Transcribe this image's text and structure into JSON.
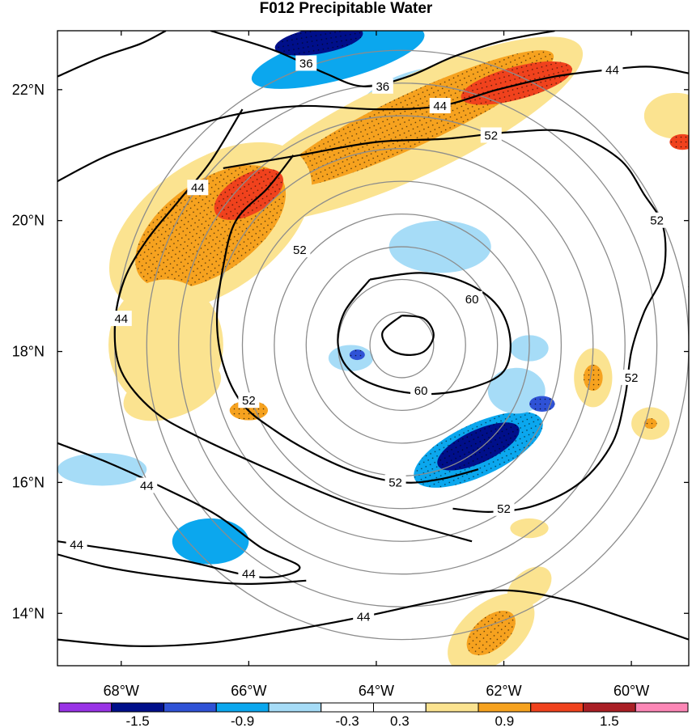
{
  "chart_data": {
    "type": "heatmap",
    "title": "F012 Precipitable Water",
    "xlabel": "",
    "ylabel": "",
    "xlim": [
      -69.0,
      -59.1
    ],
    "ylim": [
      13.2,
      22.9
    ],
    "x_ticks": [
      {
        "value": -68,
        "label": "68°W"
      },
      {
        "value": -66,
        "label": "66°W"
      },
      {
        "value": -64,
        "label": "64°W"
      },
      {
        "value": -62,
        "label": "62°W"
      },
      {
        "value": -60,
        "label": "60°W"
      }
    ],
    "y_ticks": [
      {
        "value": 14,
        "label": "14°N"
      },
      {
        "value": 16,
        "label": "16°N"
      },
      {
        "value": 18,
        "label": "18°N"
      },
      {
        "value": 20,
        "label": "20°N"
      },
      {
        "value": 22,
        "label": "22°N"
      }
    ],
    "center": {
      "lon": -63.6,
      "lat": 18.1
    },
    "range_rings_deg": [
      0.5,
      1.0,
      1.5,
      2.0,
      2.5,
      3.0,
      3.5,
      4.0,
      4.5
    ],
    "colorbar": {
      "levels": [
        -1.8,
        -1.5,
        -1.2,
        -0.9,
        -0.6,
        -0.3,
        0.3,
        0.6,
        0.9,
        1.2,
        1.5,
        1.8
      ],
      "colors": [
        "#9933e6",
        "#000f8a",
        "#2f52d6",
        "#0ba7ee",
        "#a6dcf7",
        "#ffffff",
        "#ffffff",
        "#fbe390",
        "#f6a21f",
        "#f0421d",
        "#aa1f25",
        "#fc87b6"
      ],
      "tick_labels": [
        "-1.5",
        "-0.9",
        "-0.3",
        "0.3",
        "0.9",
        "1.5"
      ],
      "tick_values": [
        -1.5,
        -0.9,
        -0.3,
        0.3,
        0.9,
        1.5
      ]
    },
    "contour_levels": [
      36,
      44,
      52,
      60
    ],
    "contour_labels": [
      {
        "text": "36",
        "lon": -65.1,
        "lat": 22.4
      },
      {
        "text": "36",
        "lon": -63.9,
        "lat": 22.05
      },
      {
        "text": "44",
        "lon": -63.0,
        "lat": 21.75
      },
      {
        "text": "44",
        "lon": -60.3,
        "lat": 22.3
      },
      {
        "text": "44",
        "lon": -66.8,
        "lat": 20.5
      },
      {
        "text": "44",
        "lon": -68.0,
        "lat": 18.5
      },
      {
        "text": "44",
        "lon": -67.6,
        "lat": 15.95
      },
      {
        "text": "44",
        "lon": -68.7,
        "lat": 15.05
      },
      {
        "text": "44",
        "lon": -66.0,
        "lat": 14.6
      },
      {
        "text": "44",
        "lon": -64.2,
        "lat": 13.95
      },
      {
        "text": "52",
        "lon": -62.2,
        "lat": 21.3
      },
      {
        "text": "52",
        "lon": -59.6,
        "lat": 20.0
      },
      {
        "text": "52",
        "lon": -65.2,
        "lat": 19.55
      },
      {
        "text": "52",
        "lon": -66.0,
        "lat": 17.25
      },
      {
        "text": "52",
        "lon": -60.0,
        "lat": 17.6
      },
      {
        "text": "52",
        "lon": -63.7,
        "lat": 16.0
      },
      {
        "text": "52",
        "lon": -62.0,
        "lat": 15.6
      },
      {
        "text": "60",
        "lon": -62.5,
        "lat": 18.8
      },
      {
        "text": "60",
        "lon": -63.3,
        "lat": 17.4
      }
    ],
    "contours": [
      {
        "level": 36,
        "points": [
          [
            -66.6,
            22.9
          ],
          [
            -65.6,
            22.6
          ],
          [
            -64.8,
            22.25
          ],
          [
            -64.2,
            22.05
          ],
          [
            -63.5,
            22.2
          ],
          [
            -62.8,
            22.5
          ],
          [
            -62.0,
            22.75
          ],
          [
            -61.2,
            22.9
          ]
        ]
      },
      {
        "level": 36,
        "points": [
          [
            -69.0,
            22.2
          ],
          [
            -68.3,
            22.5
          ],
          [
            -67.7,
            22.7
          ],
          [
            -67.3,
            22.9
          ]
        ]
      },
      {
        "level": 44,
        "points": [
          [
            -69.0,
            20.6
          ],
          [
            -68.2,
            21.0
          ],
          [
            -67.3,
            21.3
          ],
          [
            -66.3,
            21.6
          ],
          [
            -65.2,
            21.75
          ],
          [
            -64.0,
            21.7
          ],
          [
            -63.0,
            21.75
          ],
          [
            -62.1,
            22.0
          ],
          [
            -61.2,
            22.2
          ],
          [
            -60.4,
            22.3
          ],
          [
            -59.7,
            22.35
          ],
          [
            -59.1,
            22.25
          ]
        ]
      },
      {
        "level": 44,
        "points": [
          [
            -66.1,
            21.7
          ],
          [
            -66.6,
            20.9
          ],
          [
            -67.1,
            20.3
          ],
          [
            -67.6,
            19.7
          ],
          [
            -67.95,
            19.1
          ],
          [
            -68.1,
            18.4
          ],
          [
            -68.0,
            17.7
          ],
          [
            -67.5,
            17.1
          ],
          [
            -66.8,
            16.7
          ],
          [
            -65.8,
            16.25
          ],
          [
            -64.6,
            15.75
          ],
          [
            -63.4,
            15.35
          ],
          [
            -62.5,
            15.1
          ]
        ]
      },
      {
        "level": 44,
        "points": [
          [
            -69.0,
            16.6
          ],
          [
            -68.2,
            16.3
          ],
          [
            -67.3,
            15.9
          ],
          [
            -66.5,
            15.5
          ],
          [
            -65.8,
            15.0
          ],
          [
            -65.2,
            14.7
          ],
          [
            -65.8,
            14.55
          ],
          [
            -67.0,
            14.8
          ],
          [
            -68.3,
            15.0
          ],
          [
            -69.0,
            15.1
          ]
        ]
      },
      {
        "level": 44,
        "points": [
          [
            -69.0,
            14.9
          ],
          [
            -68.2,
            14.7
          ],
          [
            -67.2,
            14.55
          ],
          [
            -66.1,
            14.45
          ],
          [
            -65.1,
            14.5
          ]
        ]
      },
      {
        "level": 44,
        "points": [
          [
            -69.0,
            13.6
          ],
          [
            -67.8,
            13.5
          ],
          [
            -66.6,
            13.55
          ],
          [
            -65.3,
            13.75
          ],
          [
            -64.2,
            13.95
          ],
          [
            -63.0,
            14.2
          ],
          [
            -62.0,
            14.35
          ],
          [
            -61.0,
            14.2
          ],
          [
            -60.0,
            13.9
          ],
          [
            -59.1,
            13.6
          ]
        ]
      },
      {
        "level": 52,
        "points": [
          [
            -66.4,
            20.8
          ],
          [
            -65.2,
            21.0
          ],
          [
            -64.0,
            21.2
          ],
          [
            -62.9,
            21.25
          ],
          [
            -61.9,
            21.35
          ],
          [
            -61.0,
            21.35
          ],
          [
            -60.2,
            20.95
          ],
          [
            -59.8,
            20.4
          ],
          [
            -59.5,
            19.9
          ],
          [
            -59.5,
            19.2
          ],
          [
            -59.8,
            18.6
          ],
          [
            -60.0,
            18.0
          ],
          [
            -60.1,
            17.3
          ],
          [
            -60.3,
            16.6
          ],
          [
            -60.8,
            16.0
          ],
          [
            -61.5,
            15.65
          ],
          [
            -62.2,
            15.55
          ],
          [
            -62.8,
            15.6
          ]
        ]
      },
      {
        "level": 52,
        "points": [
          [
            -65.3,
            21.0
          ],
          [
            -65.7,
            20.5
          ],
          [
            -66.2,
            20.0
          ],
          [
            -66.4,
            19.3
          ],
          [
            -66.5,
            18.5
          ],
          [
            -66.4,
            17.8
          ],
          [
            -66.1,
            17.2
          ],
          [
            -65.6,
            16.8
          ],
          [
            -65.0,
            16.45
          ],
          [
            -64.3,
            16.15
          ],
          [
            -63.6,
            16.0
          ],
          [
            -63.0,
            16.05
          ],
          [
            -62.4,
            16.2
          ]
        ]
      },
      {
        "level": 52,
        "points": [
          [
            -59.1,
            19.0
          ],
          [
            -58.8,
            18.6
          ]
        ]
      },
      {
        "level": 60,
        "points": [
          [
            -64.1,
            19.1
          ],
          [
            -63.3,
            19.2
          ],
          [
            -62.6,
            19.05
          ],
          [
            -62.1,
            18.7
          ],
          [
            -61.9,
            18.2
          ],
          [
            -62.0,
            17.7
          ],
          [
            -62.5,
            17.45
          ],
          [
            -63.2,
            17.35
          ],
          [
            -63.9,
            17.45
          ],
          [
            -64.4,
            17.7
          ],
          [
            -64.6,
            18.1
          ],
          [
            -64.5,
            18.6
          ],
          [
            -64.1,
            19.1
          ]
        ]
      },
      {
        "level": 60,
        "points": [
          [
            -63.6,
            18.55
          ],
          [
            -63.25,
            18.5
          ],
          [
            -63.1,
            18.25
          ],
          [
            -63.25,
            18.0
          ],
          [
            -63.55,
            17.95
          ],
          [
            -63.8,
            18.05
          ],
          [
            -63.9,
            18.3
          ],
          [
            -63.6,
            18.55
          ]
        ]
      }
    ],
    "anomaly_blobs": [
      {
        "lon": -64.6,
        "lat": 22.5,
        "rx": 1.4,
        "ry": 0.35,
        "rot": -15,
        "value": -0.7
      },
      {
        "lon": -64.9,
        "lat": 22.75,
        "rx": 0.7,
        "ry": 0.2,
        "rot": -10,
        "value": -1.3
      },
      {
        "lon": -63.5,
        "lat": 21.95,
        "rx": 0.8,
        "ry": 0.3,
        "rot": -20,
        "value": -0.4
      },
      {
        "lon": -63.5,
        "lat": 21.4,
        "rx": 3.0,
        "ry": 0.75,
        "rot": -25,
        "value": 0.65
      },
      {
        "lon": -63.4,
        "lat": 21.55,
        "rx": 2.4,
        "ry": 0.4,
        "rot": -25,
        "value": 1.0
      },
      {
        "lon": -61.8,
        "lat": 22.1,
        "rx": 0.9,
        "ry": 0.25,
        "rot": -15,
        "value": 1.25
      },
      {
        "lon": -66.6,
        "lat": 19.9,
        "rx": 1.8,
        "ry": 1.0,
        "rot": -35,
        "value": 0.7
      },
      {
        "lon": -66.6,
        "lat": 19.9,
        "rx": 1.35,
        "ry": 0.7,
        "rot": -35,
        "value": 1.0
      },
      {
        "lon": -66.0,
        "lat": 20.4,
        "rx": 0.6,
        "ry": 0.3,
        "rot": -30,
        "value": 1.25
      },
      {
        "lon": -67.3,
        "lat": 18.1,
        "rx": 0.9,
        "ry": 1.0,
        "rot": 0,
        "value": 0.6
      },
      {
        "lon": -67.2,
        "lat": 17.4,
        "rx": 0.8,
        "ry": 0.4,
        "rot": -20,
        "value": 0.75
      },
      {
        "lon": -66.0,
        "lat": 17.1,
        "rx": 0.3,
        "ry": 0.15,
        "rot": 0,
        "value": 1.0
      },
      {
        "lon": -62.4,
        "lat": 16.5,
        "rx": 1.1,
        "ry": 0.4,
        "rot": -25,
        "value": -0.9
      },
      {
        "lon": -62.4,
        "lat": 16.55,
        "rx": 0.7,
        "ry": 0.25,
        "rot": -25,
        "value": -1.35
      },
      {
        "lon": -61.8,
        "lat": 17.4,
        "rx": 0.45,
        "ry": 0.35,
        "rot": 0,
        "value": -0.6
      },
      {
        "lon": -61.4,
        "lat": 17.2,
        "rx": 0.2,
        "ry": 0.12,
        "rot": 0,
        "value": -1.2
      },
      {
        "lon": -61.6,
        "lat": 18.05,
        "rx": 0.3,
        "ry": 0.2,
        "rot": 0,
        "value": -0.6
      },
      {
        "lon": -64.4,
        "lat": 17.9,
        "rx": 0.35,
        "ry": 0.2,
        "rot": 0,
        "value": -0.6
      },
      {
        "lon": -64.3,
        "lat": 17.95,
        "rx": 0.12,
        "ry": 0.08,
        "rot": 0,
        "value": -1.2
      },
      {
        "lon": -63.0,
        "lat": 19.6,
        "rx": 0.8,
        "ry": 0.4,
        "rot": 0,
        "value": -0.35
      },
      {
        "lon": -63.6,
        "lat": 17.6,
        "rx": 0.4,
        "ry": 0.2,
        "rot": 0,
        "value": 0.45
      },
      {
        "lon": -62.6,
        "lat": 17.9,
        "rx": 0.25,
        "ry": 0.15,
        "rot": 0,
        "value": 0.5
      },
      {
        "lon": -60.6,
        "lat": 17.6,
        "rx": 0.3,
        "ry": 0.45,
        "rot": 0,
        "value": 0.7
      },
      {
        "lon": -60.6,
        "lat": 17.6,
        "rx": 0.15,
        "ry": 0.2,
        "rot": 0,
        "value": 1.0
      },
      {
        "lon": -59.4,
        "lat": 19.6,
        "rx": 0.6,
        "ry": 0.4,
        "rot": -30,
        "value": 0.5
      },
      {
        "lon": -59.7,
        "lat": 16.9,
        "rx": 0.3,
        "ry": 0.25,
        "rot": 0,
        "value": 0.6
      },
      {
        "lon": -59.7,
        "lat": 16.9,
        "rx": 0.1,
        "ry": 0.08,
        "rot": 0,
        "value": 1.1
      },
      {
        "lon": -59.3,
        "lat": 21.6,
        "rx": 0.5,
        "ry": 0.35,
        "rot": 0,
        "value": 0.7
      },
      {
        "lon": -59.2,
        "lat": 21.2,
        "rx": 0.2,
        "ry": 0.12,
        "rot": 0,
        "value": 1.3
      },
      {
        "lon": -62.2,
        "lat": 13.7,
        "rx": 0.8,
        "ry": 0.45,
        "rot": -40,
        "value": 0.75
      },
      {
        "lon": -62.2,
        "lat": 13.7,
        "rx": 0.45,
        "ry": 0.25,
        "rot": -40,
        "value": 1.0
      },
      {
        "lon": -61.6,
        "lat": 14.4,
        "rx": 0.4,
        "ry": 0.25,
        "rot": -40,
        "value": 0.8
      },
      {
        "lon": -61.6,
        "lat": 15.3,
        "rx": 0.3,
        "ry": 0.15,
        "rot": 0,
        "value": 0.7
      },
      {
        "lon": -68.3,
        "lat": 16.2,
        "rx": 0.7,
        "ry": 0.25,
        "rot": 0,
        "value": -0.4
      },
      {
        "lon": -66.6,
        "lat": 15.1,
        "rx": 0.6,
        "ry": 0.35,
        "rot": 0,
        "value": -0.75
      },
      {
        "lon": -65.4,
        "lat": 16.6,
        "rx": 0.5,
        "ry": 0.2,
        "rot": 0,
        "value": 0.45
      },
      {
        "lon": -68.6,
        "lat": 21.7,
        "rx": 0.5,
        "ry": 0.35,
        "rot": 0,
        "value": 0.4
      },
      {
        "lon": -67.6,
        "lat": 13.8,
        "rx": 0.5,
        "ry": 0.25,
        "rot": 0,
        "value": 0.4
      },
      {
        "lon": -60.5,
        "lat": 14.3,
        "rx": 0.6,
        "ry": 0.35,
        "rot": 0,
        "value": 0.45
      },
      {
        "lon": -64.3,
        "lat": 19.7,
        "rx": 0.35,
        "ry": 0.2,
        "rot": 0,
        "value": 0.45
      }
    ]
  }
}
